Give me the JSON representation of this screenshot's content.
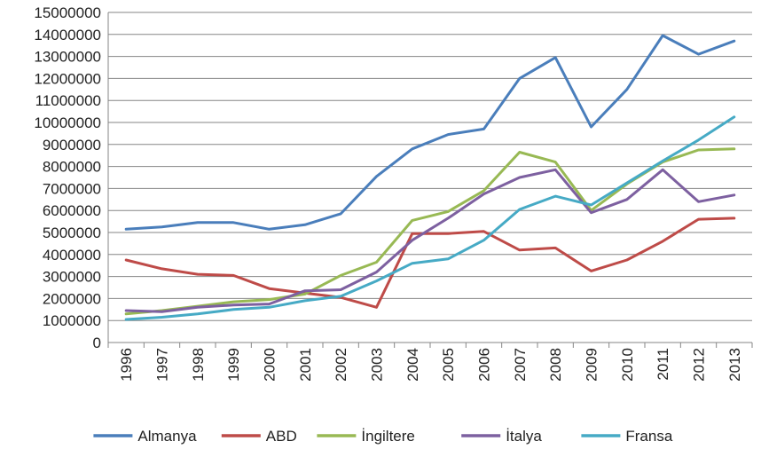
{
  "chart_data": {
    "type": "line",
    "title": "",
    "xlabel": "",
    "ylabel": "",
    "x": [
      "1996",
      "1997",
      "1998",
      "1999",
      "2000",
      "2001",
      "2002",
      "2003",
      "2004",
      "2005",
      "2006",
      "2007",
      "2008",
      "2009",
      "2010",
      "2011",
      "2012",
      "2013"
    ],
    "ylim": [
      0,
      15000000
    ],
    "yticks": [
      "0",
      "1000000",
      "2000000",
      "3000000",
      "4000000",
      "5000000",
      "6000000",
      "7000000",
      "8000000",
      "9000000",
      "10000000",
      "11000000",
      "12000000",
      "13000000",
      "14000000",
      "15000000"
    ],
    "grid": true,
    "legend_position": "bottom",
    "series": [
      {
        "name": "Almanya",
        "color": "#4a7ebb",
        "values": [
          5150000,
          5250000,
          5450000,
          5450000,
          5150000,
          5350000,
          5850000,
          7550000,
          8800000,
          9450000,
          9700000,
          12000000,
          12950000,
          9800000,
          11500000,
          13950000,
          13100000,
          13700000
        ]
      },
      {
        "name": "ABD",
        "color": "#be4b48",
        "values": [
          3750000,
          3350000,
          3100000,
          3050000,
          2450000,
          2250000,
          2050000,
          1600000,
          4950000,
          4950000,
          5050000,
          4200000,
          4300000,
          3250000,
          3750000,
          4600000,
          5600000,
          5650000
        ]
      },
      {
        "name": "İngiltere",
        "color": "#98b954",
        "values": [
          1300000,
          1450000,
          1650000,
          1850000,
          1950000,
          2200000,
          3050000,
          3650000,
          5550000,
          5950000,
          6900000,
          8650000,
          8200000,
          6000000,
          7200000,
          8200000,
          8750000,
          8800000
        ]
      },
      {
        "name": "İtalya",
        "color": "#7d60a0",
        "values": [
          1450000,
          1400000,
          1600000,
          1700000,
          1750000,
          2350000,
          2400000,
          3200000,
          4650000,
          5650000,
          6750000,
          7500000,
          7850000,
          5900000,
          6500000,
          7850000,
          6400000,
          6700000
        ]
      },
      {
        "name": "Fransa",
        "color": "#46aac5",
        "values": [
          1050000,
          1150000,
          1300000,
          1500000,
          1600000,
          1900000,
          2100000,
          2800000,
          3600000,
          3800000,
          4650000,
          6050000,
          6650000,
          6250000,
          7250000,
          8250000,
          9200000,
          10250000
        ]
      }
    ]
  }
}
